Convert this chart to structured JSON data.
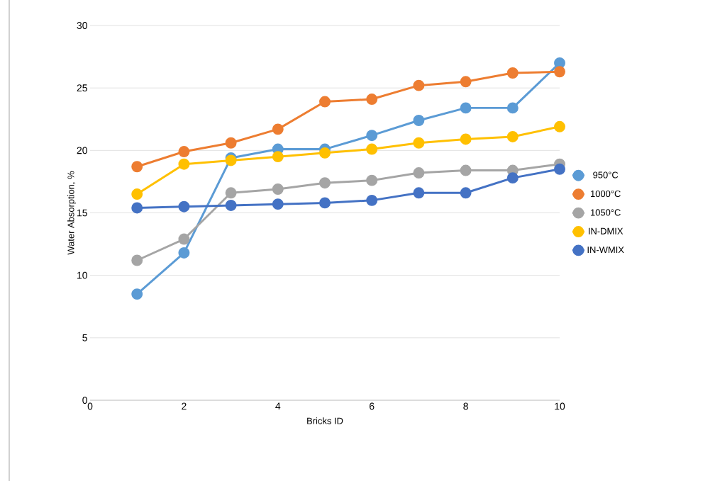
{
  "chart_data": {
    "type": "line",
    "xlabel": "Bricks ID",
    "ylabel": "Water Absorption, %",
    "x": [
      1,
      2,
      3,
      4,
      5,
      6,
      7,
      8,
      9,
      10
    ],
    "series": [
      {
        "name": "950°C",
        "color": "#5b9bd5",
        "values": [
          8.5,
          11.8,
          19.4,
          20.1,
          20.1,
          21.2,
          22.4,
          23.4,
          23.4,
          27.0
        ]
      },
      {
        "name": "1000°C",
        "color": "#ed7d31",
        "values": [
          18.7,
          19.9,
          20.6,
          21.7,
          23.9,
          24.1,
          25.2,
          25.5,
          26.2,
          26.3
        ]
      },
      {
        "name": "1050°C",
        "color": "#a5a5a5",
        "values": [
          11.2,
          12.9,
          16.6,
          16.9,
          17.4,
          17.6,
          18.2,
          18.4,
          18.4,
          18.9
        ]
      },
      {
        "name": "IN-DMIX",
        "color": "#ffc000",
        "values": [
          16.5,
          18.9,
          19.2,
          19.5,
          19.8,
          20.1,
          20.6,
          20.9,
          21.1,
          21.9
        ]
      },
      {
        "name": "IN-WMIX",
        "color": "#4472c4",
        "values": [
          15.4,
          15.5,
          15.6,
          15.7,
          15.8,
          16.0,
          16.6,
          16.6,
          17.8,
          18.5
        ]
      }
    ],
    "xlim": [
      0,
      10
    ],
    "xticks": [
      0,
      2,
      4,
      6,
      8,
      10
    ],
    "ylim": [
      0,
      30
    ],
    "yticks": [
      0,
      5,
      10,
      15,
      20,
      25,
      30
    ],
    "grid": "y",
    "legend": "right",
    "marker": "circle",
    "line_style": "solid"
  }
}
